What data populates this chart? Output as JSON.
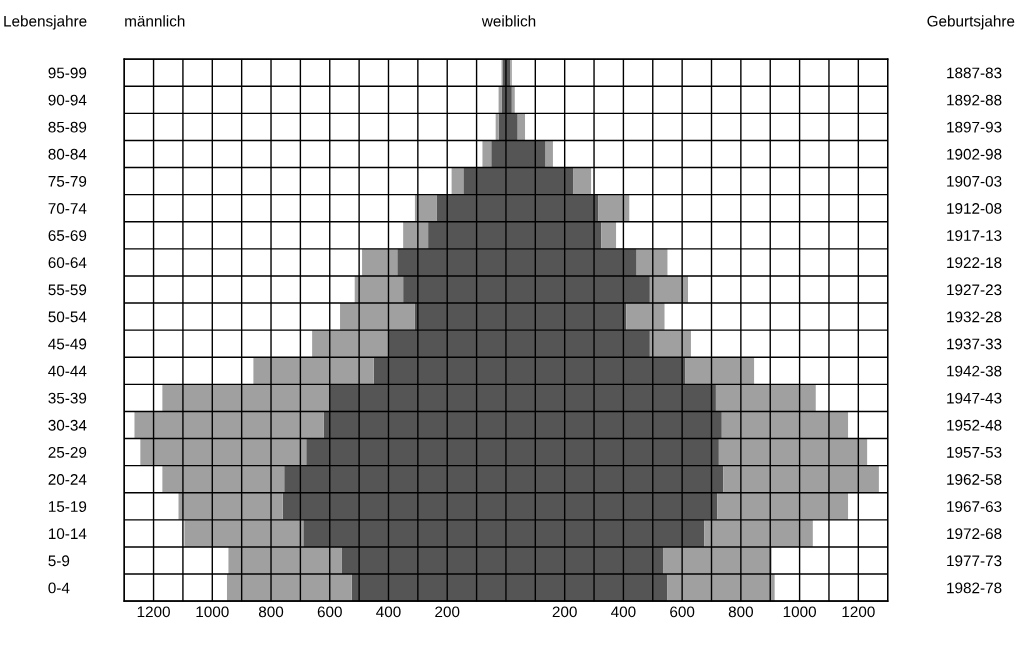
{
  "chart_data": {
    "type": "bar",
    "orientation": "horizontal",
    "stacked": true,
    "ylabel": "Lebensjahre",
    "y2label": "Geburtsjahre",
    "annotations": [
      "männlich",
      "weiblich"
    ],
    "categories": [
      "95-99",
      "90-94",
      "85-89",
      "80-84",
      "75-79",
      "70-74",
      "65-69",
      "60-64",
      "55-59",
      "50-54",
      "45-49",
      "40-44",
      "35-39",
      "30-34",
      "25-29",
      "20-24",
      "15-19",
      "10-14",
      "5-9",
      "0-4"
    ],
    "y2_categories": [
      "1887-83",
      "1892-88",
      "1897-93",
      "1902-98",
      "1907-03",
      "1912-08",
      "1917-13",
      "1922-18",
      "1927-23",
      "1932-28",
      "1937-33",
      "1942-38",
      "1947-43",
      "1952-48",
      "1957-53",
      "1962-58",
      "1967-63",
      "1972-68",
      "1977-73",
      "1982-78"
    ],
    "series": [
      {
        "color": "#555555",
        "values": [
          -10,
          -15,
          -25,
          -50,
          -145,
          -235,
          -265,
          -370,
          -350,
          -310,
          -400,
          -450,
          -600,
          -620,
          -680,
          -755,
          -760,
          -690,
          -560,
          -525
        ]
      },
      {
        "color": "#a0a0a0",
        "values": [
          -5,
          -10,
          -10,
          -30,
          -40,
          -75,
          -85,
          -120,
          -165,
          -255,
          -260,
          -410,
          -570,
          -645,
          -565,
          -415,
          -355,
          -405,
          -385,
          -425
        ]
      },
      {
        "color": "#555555",
        "values": [
          15,
          20,
          40,
          135,
          230,
          315,
          325,
          445,
          490,
          410,
          490,
          610,
          715,
          735,
          725,
          740,
          720,
          675,
          535,
          550
        ]
      },
      {
        "color": "#a0a0a0",
        "values": [
          5,
          10,
          25,
          25,
          60,
          105,
          50,
          105,
          130,
          130,
          140,
          235,
          340,
          430,
          505,
          530,
          445,
          370,
          370,
          365
        ]
      }
    ],
    "xlim": [
      -1300,
      1300
    ],
    "xticks": [
      {
        "value": -1300,
        "label": null
      },
      {
        "value": -1200,
        "label": "1200"
      },
      {
        "value": -1100,
        "label": null
      },
      {
        "value": -1000,
        "label": "1000"
      },
      {
        "value": -900,
        "label": null
      },
      {
        "value": -800,
        "label": "800"
      },
      {
        "value": -700,
        "label": null
      },
      {
        "value": -600,
        "label": "600"
      },
      {
        "value": -500,
        "label": null
      },
      {
        "value": -400,
        "label": "400"
      },
      {
        "value": -300,
        "label": null
      },
      {
        "value": -200,
        "label": "200"
      },
      {
        "value": -100,
        "label": null
      },
      {
        "value": 0,
        "label": null
      },
      {
        "value": 100,
        "label": null
      },
      {
        "value": 200,
        "label": "200"
      },
      {
        "value": 300,
        "label": null
      },
      {
        "value": 400,
        "label": "400"
      },
      {
        "value": 500,
        "label": null
      },
      {
        "value": 600,
        "label": "600"
      },
      {
        "value": 700,
        "label": null
      },
      {
        "value": 800,
        "label": "800"
      },
      {
        "value": 900,
        "label": null
      },
      {
        "value": 1000,
        "label": "1000"
      },
      {
        "value": 1100,
        "label": null
      },
      {
        "value": 1200,
        "label": "1200"
      },
      {
        "value": 1300,
        "label": null
      }
    ],
    "grid": true
  }
}
